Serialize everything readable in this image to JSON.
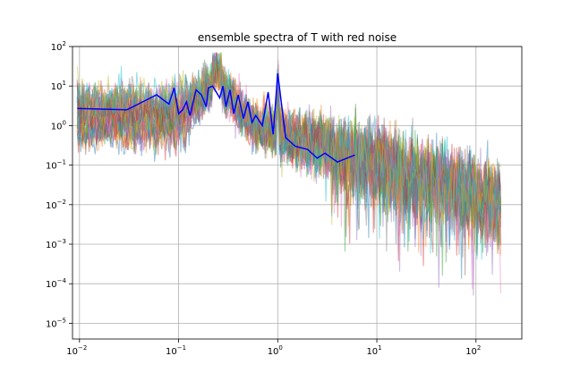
{
  "chart_data": {
    "type": "line",
    "title": "ensemble spectra of T with red noise",
    "xlabel": "",
    "ylabel": "",
    "xscale": "log",
    "yscale": "log",
    "xlim": [
      0.0085,
      290
    ],
    "ylim": [
      4e-06,
      100
    ],
    "grid": true,
    "x_ticks": [
      {
        "value": 0.01,
        "base": "10",
        "exp": "−2"
      },
      {
        "value": 0.1,
        "base": "10",
        "exp": "−1"
      },
      {
        "value": 1,
        "base": "10",
        "exp": "0"
      },
      {
        "value": 10,
        "base": "10",
        "exp": "1"
      },
      {
        "value": 100,
        "base": "10",
        "exp": "2"
      }
    ],
    "y_ticks": [
      {
        "value": 1e-05,
        "base": "10",
        "exp": "−5"
      },
      {
        "value": 0.0001,
        "base": "10",
        "exp": "−4"
      },
      {
        "value": 0.001,
        "base": "10",
        "exp": "−3"
      },
      {
        "value": 0.01,
        "base": "10",
        "exp": "−2"
      },
      {
        "value": 0.1,
        "base": "10",
        "exp": "−1"
      },
      {
        "value": 1,
        "base": "10",
        "exp": "0"
      },
      {
        "value": 10,
        "base": "10",
        "exp": "1"
      },
      {
        "value": 100,
        "base": "10",
        "exp": "2"
      }
    ],
    "ensemble": {
      "count": 30,
      "x_range": [
        0.0095,
        180
      ],
      "low_freq_level_range": [
        0.6,
        6
      ],
      "peak_frequency": 0.24,
      "peak_value": 40,
      "high_freq_end_level": 0.012,
      "colors": [
        "#1f77b4",
        "#ff7f0e",
        "#2ca02c",
        "#d62728",
        "#9467bd",
        "#8c564b",
        "#e377c2",
        "#7f7f7f",
        "#bcbd22",
        "#17becf"
      ]
    },
    "series": [
      {
        "color": "#0000ff",
        "x": [
          0.0095,
          0.03,
          0.06,
          0.08,
          0.09,
          0.1,
          0.11,
          0.12,
          0.13,
          0.15,
          0.17,
          0.19,
          0.2,
          0.22,
          0.24,
          0.26,
          0.28,
          0.3,
          0.33,
          0.36,
          0.4,
          0.45,
          0.5,
          0.55,
          0.6,
          0.7,
          0.8,
          0.9,
          1.0,
          1.2,
          1.5,
          2.0,
          2.5,
          3.0,
          4.0,
          5.0,
          6.0
        ],
        "y": [
          2.7,
          2.5,
          6.0,
          3.5,
          9.0,
          2.0,
          2.5,
          4.0,
          1.8,
          8.0,
          6.0,
          3.0,
          9.0,
          10.0,
          7.0,
          5.0,
          10.0,
          3.0,
          8.0,
          2.0,
          6.0,
          1.5,
          4.0,
          1.2,
          1.8,
          1.0,
          7.0,
          0.6,
          21.0,
          0.5,
          0.3,
          0.25,
          0.15,
          0.2,
          0.12,
          0.15,
          0.18
        ]
      }
    ]
  }
}
